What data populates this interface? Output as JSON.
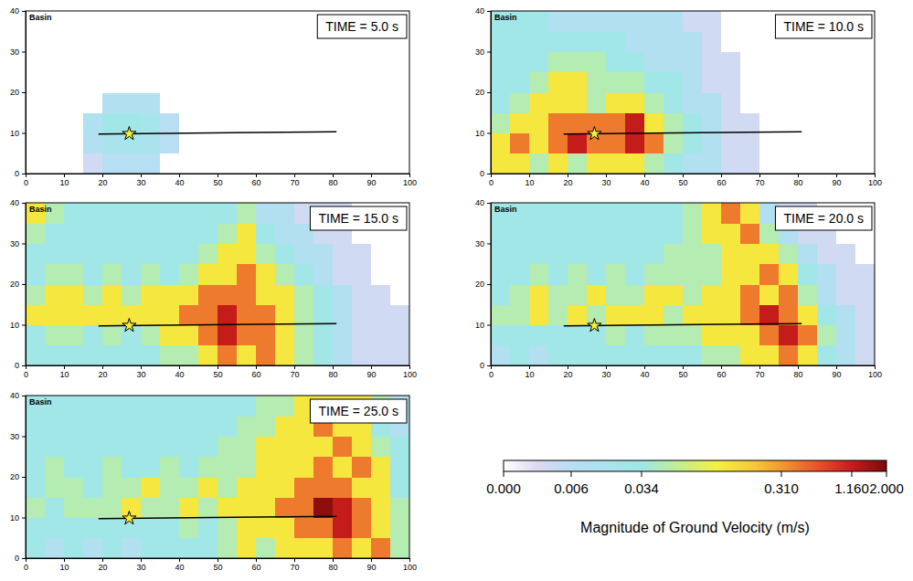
{
  "chart_data": [
    {
      "type": "heatmap",
      "title": "Basin",
      "annotation": "TIME = 5.0 s",
      "x": [
        2.5,
        7.5,
        12.5,
        17.5,
        22.5,
        27.5,
        32.5,
        37.5,
        42.5,
        47.5,
        52.5,
        57.5,
        62.5,
        67.5,
        72.5,
        77.5,
        82.5,
        87.5,
        92.5,
        97.5
      ],
      "y": [
        2.5,
        7.5,
        12.5,
        17.5,
        22.5,
        27.5,
        32.5,
        37.5
      ],
      "z": [
        [
          0,
          0,
          0,
          0.004,
          0.008,
          0.008,
          0.008,
          0,
          0,
          0,
          0,
          0,
          0,
          0,
          0,
          0,
          0,
          0,
          0,
          0
        ],
        [
          0,
          0,
          0,
          0.012,
          0.02,
          0.025,
          0.02,
          0.006,
          0,
          0,
          0,
          0,
          0,
          0,
          0,
          0,
          0,
          0,
          0,
          0
        ],
        [
          0,
          0,
          0,
          0.015,
          0.03,
          0.03,
          0.025,
          0.006,
          0,
          0,
          0,
          0,
          0,
          0,
          0,
          0,
          0,
          0,
          0,
          0
        ],
        [
          0,
          0,
          0,
          0,
          0.012,
          0.012,
          0.012,
          0,
          0,
          0,
          0,
          0,
          0,
          0,
          0,
          0,
          0,
          0,
          0,
          0
        ],
        [
          0,
          0,
          0,
          0,
          0,
          0,
          0,
          0,
          0,
          0,
          0,
          0,
          0,
          0,
          0,
          0,
          0,
          0,
          0,
          0
        ],
        [
          0,
          0,
          0,
          0,
          0,
          0,
          0,
          0,
          0,
          0,
          0,
          0,
          0,
          0,
          0,
          0,
          0,
          0,
          0,
          0
        ],
        [
          0,
          0,
          0,
          0,
          0,
          0,
          0,
          0,
          0,
          0,
          0,
          0,
          0,
          0,
          0,
          0,
          0,
          0,
          0,
          0
        ],
        [
          0,
          0,
          0,
          0,
          0,
          0,
          0,
          0,
          0,
          0,
          0,
          0,
          0,
          0,
          0,
          0,
          0,
          0,
          0,
          0
        ]
      ],
      "xlim": [
        0,
        100
      ],
      "ylim": [
        0,
        40
      ],
      "xticks": [
        0,
        10,
        20,
        30,
        40,
        50,
        60,
        70,
        80,
        90,
        100
      ],
      "yticks": [
        0,
        10,
        20,
        30,
        40
      ],
      "fault": {
        "x": [
          19,
          81
        ],
        "y": [
          9.7,
          10.3
        ]
      },
      "epicenter": {
        "x": 27,
        "y": 9.8
      }
    },
    {
      "type": "heatmap",
      "title": "Basin",
      "annotation": "TIME = 10.0 s",
      "x": [
        2.5,
        7.5,
        12.5,
        17.5,
        22.5,
        27.5,
        32.5,
        37.5,
        42.5,
        47.5,
        52.5,
        57.5,
        62.5,
        67.5,
        72.5,
        77.5,
        82.5,
        87.5,
        92.5,
        97.5
      ],
      "y": [
        2.5,
        7.5,
        12.5,
        17.5,
        22.5,
        27.5,
        32.5,
        37.5
      ],
      "z": [
        [
          0.2,
          0.2,
          0.08,
          0.2,
          0.08,
          0.2,
          0.2,
          0.2,
          0.08,
          0.03,
          0.012,
          0.012,
          0.004,
          0.004,
          0,
          0,
          0,
          0,
          0,
          0
        ],
        [
          0.2,
          0.5,
          0.2,
          0.5,
          1.2,
          0.5,
          0.5,
          1.2,
          0.5,
          0.08,
          0.03,
          0.012,
          0.004,
          0.004,
          0,
          0,
          0,
          0,
          0,
          0
        ],
        [
          0.08,
          0.2,
          0.2,
          0.5,
          0.5,
          0.5,
          0.5,
          1.2,
          0.2,
          0.08,
          0.03,
          0.012,
          0.004,
          0.004,
          0,
          0,
          0,
          0,
          0,
          0
        ],
        [
          0.03,
          0.08,
          0.2,
          0.2,
          0.2,
          0.08,
          0.2,
          0.2,
          0.08,
          0.03,
          0.012,
          0.012,
          0.004,
          0,
          0,
          0,
          0,
          0,
          0,
          0
        ],
        [
          0.03,
          0.03,
          0.08,
          0.2,
          0.2,
          0.08,
          0.08,
          0.08,
          0.03,
          0.03,
          0.012,
          0.004,
          0.004,
          0,
          0,
          0,
          0,
          0,
          0,
          0
        ],
        [
          0.03,
          0.03,
          0.03,
          0.08,
          0.08,
          0.08,
          0.03,
          0.03,
          0.012,
          0.012,
          0.012,
          0.004,
          0.004,
          0,
          0,
          0,
          0,
          0,
          0,
          0
        ],
        [
          0.03,
          0.03,
          0.03,
          0.03,
          0.03,
          0.03,
          0.03,
          0.012,
          0.012,
          0.012,
          0.012,
          0.004,
          0,
          0,
          0,
          0,
          0,
          0,
          0,
          0
        ],
        [
          0.03,
          0.03,
          0.03,
          0.012,
          0.012,
          0.012,
          0.012,
          0.012,
          0.012,
          0.012,
          0.004,
          0.004,
          0,
          0,
          0,
          0,
          0,
          0,
          0,
          0
        ]
      ],
      "xlim": [
        0,
        100
      ],
      "ylim": [
        0,
        40
      ],
      "xticks": [
        0,
        10,
        20,
        30,
        40,
        50,
        60,
        70,
        80,
        90,
        100
      ],
      "yticks": [
        0,
        10,
        20,
        30,
        40
      ],
      "fault": {
        "x": [
          19,
          81
        ],
        "y": [
          9.7,
          10.3
        ]
      },
      "epicenter": {
        "x": 27,
        "y": 9.8
      }
    },
    {
      "type": "heatmap",
      "title": "Basin",
      "annotation": "TIME = 15.0 s",
      "x": [
        2.5,
        7.5,
        12.5,
        17.5,
        22.5,
        27.5,
        32.5,
        37.5,
        42.5,
        47.5,
        52.5,
        57.5,
        62.5,
        67.5,
        72.5,
        77.5,
        82.5,
        87.5,
        92.5,
        97.5
      ],
      "y": [
        2.5,
        7.5,
        12.5,
        17.5,
        22.5,
        27.5,
        32.5,
        37.5
      ],
      "z": [
        [
          0.03,
          0.03,
          0.03,
          0.03,
          0.03,
          0.03,
          0.03,
          0.08,
          0.08,
          0.2,
          0.5,
          0.2,
          0.5,
          0.2,
          0.08,
          0.03,
          0.012,
          0.004,
          0.004,
          0.004
        ],
        [
          0.03,
          0.08,
          0.08,
          0.03,
          0.08,
          0.03,
          0.08,
          0.2,
          0.2,
          0.5,
          1.2,
          0.5,
          0.5,
          0.2,
          0.08,
          0.03,
          0.012,
          0.004,
          0.004,
          0.004
        ],
        [
          0.2,
          0.2,
          0.2,
          0.2,
          0.2,
          0.2,
          0.2,
          0.2,
          0.5,
          0.5,
          1.2,
          0.5,
          0.5,
          0.2,
          0.08,
          0.03,
          0.012,
          0.004,
          0.004,
          0.004
        ],
        [
          0.08,
          0.2,
          0.2,
          0.08,
          0.2,
          0.08,
          0.2,
          0.2,
          0.2,
          0.5,
          0.5,
          0.5,
          0.2,
          0.2,
          0.08,
          0.03,
          0.012,
          0.004,
          0.004,
          0
        ],
        [
          0.03,
          0.08,
          0.08,
          0.03,
          0.08,
          0.03,
          0.08,
          0.03,
          0.08,
          0.2,
          0.2,
          0.5,
          0.2,
          0.08,
          0.03,
          0.012,
          0.004,
          0.004,
          0,
          0
        ],
        [
          0.03,
          0.03,
          0.03,
          0.03,
          0.03,
          0.03,
          0.03,
          0.03,
          0.03,
          0.08,
          0.2,
          0.2,
          0.08,
          0.03,
          0.012,
          0.012,
          0.004,
          0.004,
          0,
          0
        ],
        [
          0.08,
          0.03,
          0.03,
          0.03,
          0.03,
          0.03,
          0.03,
          0.03,
          0.03,
          0.03,
          0.08,
          0.2,
          0.03,
          0.012,
          0.012,
          0.004,
          0.004,
          0,
          0,
          0
        ],
        [
          0.2,
          0.08,
          0.03,
          0.03,
          0.03,
          0.03,
          0.03,
          0.03,
          0.03,
          0.03,
          0.03,
          0.08,
          0.012,
          0.012,
          0.004,
          0.004,
          0.004,
          0,
          0,
          0
        ]
      ],
      "xlim": [
        0,
        100
      ],
      "ylim": [
        0,
        40
      ],
      "xticks": [
        0,
        10,
        20,
        30,
        40,
        50,
        60,
        70,
        80,
        90,
        100
      ],
      "yticks": [
        0,
        10,
        20,
        30,
        40
      ],
      "fault": {
        "x": [
          19,
          81
        ],
        "y": [
          9.7,
          10.3
        ]
      },
      "epicenter": {
        "x": 27,
        "y": 9.8
      }
    },
    {
      "type": "heatmap",
      "title": "Basin",
      "annotation": "TIME = 20.0 s",
      "x": [
        2.5,
        7.5,
        12.5,
        17.5,
        22.5,
        27.5,
        32.5,
        37.5,
        42.5,
        47.5,
        52.5,
        57.5,
        62.5,
        67.5,
        72.5,
        77.5,
        82.5,
        87.5,
        92.5,
        97.5
      ],
      "y": [
        2.5,
        7.5,
        12.5,
        17.5,
        22.5,
        27.5,
        32.5,
        37.5
      ],
      "z": [
        [
          0.012,
          0.03,
          0.012,
          0.03,
          0.03,
          0.03,
          0.03,
          0.03,
          0.03,
          0.03,
          0.03,
          0.08,
          0.08,
          0.2,
          0.2,
          0.5,
          0.2,
          0.03,
          0.012,
          0.004
        ],
        [
          0.03,
          0.03,
          0.03,
          0.03,
          0.03,
          0.03,
          0.08,
          0.03,
          0.08,
          0.08,
          0.08,
          0.2,
          0.2,
          0.2,
          0.5,
          1.2,
          0.5,
          0.08,
          0.012,
          0.004
        ],
        [
          0.08,
          0.08,
          0.2,
          0.08,
          0.2,
          0.08,
          0.2,
          0.2,
          0.2,
          0.08,
          0.2,
          0.2,
          0.2,
          0.5,
          1.2,
          0.5,
          0.2,
          0.03,
          0.012,
          0.004
        ],
        [
          0.03,
          0.08,
          0.2,
          0.08,
          0.08,
          0.2,
          0.08,
          0.08,
          0.2,
          0.2,
          0.08,
          0.2,
          0.2,
          0.5,
          0.2,
          0.5,
          0.08,
          0.012,
          0.004,
          0.004
        ],
        [
          0.03,
          0.03,
          0.08,
          0.03,
          0.08,
          0.03,
          0.08,
          0.03,
          0.08,
          0.08,
          0.08,
          0.08,
          0.2,
          0.2,
          0.5,
          0.2,
          0.03,
          0.012,
          0.004,
          0.004
        ],
        [
          0.03,
          0.03,
          0.03,
          0.03,
          0.03,
          0.03,
          0.03,
          0.03,
          0.03,
          0.08,
          0.08,
          0.08,
          0.2,
          0.2,
          0.2,
          0.08,
          0.012,
          0.004,
          0.004,
          0
        ],
        [
          0.03,
          0.03,
          0.03,
          0.03,
          0.03,
          0.03,
          0.03,
          0.03,
          0.03,
          0.03,
          0.08,
          0.2,
          0.2,
          0.5,
          0.08,
          0.012,
          0.004,
          0.004,
          0,
          0
        ],
        [
          0.03,
          0.03,
          0.03,
          0.03,
          0.03,
          0.03,
          0.03,
          0.03,
          0.03,
          0.03,
          0.08,
          0.2,
          0.5,
          0.2,
          0.012,
          0.004,
          0.004,
          0,
          0,
          0
        ]
      ],
      "xlim": [
        0,
        100
      ],
      "ylim": [
        0,
        40
      ],
      "xticks": [
        0,
        10,
        20,
        30,
        40,
        50,
        60,
        70,
        80,
        90,
        100
      ],
      "yticks": [
        0,
        10,
        20,
        30,
        40
      ],
      "fault": {
        "x": [
          19,
          81
        ],
        "y": [
          9.7,
          10.3
        ]
      },
      "epicenter": {
        "x": 27,
        "y": 9.8
      }
    },
    {
      "type": "heatmap",
      "title": "Basin",
      "annotation": "TIME = 25.0 s",
      "x": [
        2.5,
        7.5,
        12.5,
        17.5,
        22.5,
        27.5,
        32.5,
        37.5,
        42.5,
        47.5,
        52.5,
        57.5,
        62.5,
        67.5,
        72.5,
        77.5,
        82.5,
        87.5,
        92.5,
        97.5
      ],
      "y": [
        2.5,
        7.5,
        12.5,
        17.5,
        22.5,
        27.5,
        32.5,
        37.5
      ],
      "z": [
        [
          0.03,
          0.012,
          0.03,
          0.012,
          0.03,
          0.012,
          0.03,
          0.03,
          0.03,
          0.03,
          0.08,
          0.2,
          0.08,
          0.2,
          0.2,
          0.2,
          0.5,
          0.2,
          0.5,
          0.08
        ],
        [
          0.03,
          0.03,
          0.03,
          0.03,
          0.03,
          0.03,
          0.03,
          0.03,
          0.08,
          0.03,
          0.08,
          0.2,
          0.2,
          0.2,
          0.5,
          0.5,
          1.2,
          0.5,
          0.2,
          0.08
        ],
        [
          0.08,
          0.03,
          0.08,
          0.08,
          0.08,
          0.2,
          0.08,
          0.08,
          0.2,
          0.08,
          0.2,
          0.2,
          0.2,
          0.5,
          0.5,
          1.8,
          1.2,
          0.5,
          0.2,
          0.08
        ],
        [
          0.03,
          0.08,
          0.08,
          0.03,
          0.08,
          0.08,
          0.2,
          0.08,
          0.08,
          0.2,
          0.08,
          0.2,
          0.2,
          0.2,
          0.5,
          0.5,
          0.5,
          0.2,
          0.2,
          0.03
        ],
        [
          0.03,
          0.08,
          0.03,
          0.03,
          0.08,
          0.03,
          0.03,
          0.08,
          0.03,
          0.08,
          0.08,
          0.08,
          0.2,
          0.2,
          0.2,
          0.5,
          0.2,
          0.5,
          0.2,
          0.03
        ],
        [
          0.03,
          0.03,
          0.03,
          0.03,
          0.03,
          0.03,
          0.03,
          0.03,
          0.03,
          0.03,
          0.08,
          0.08,
          0.2,
          0.2,
          0.2,
          0.2,
          0.5,
          0.2,
          0.08,
          0.03
        ],
        [
          0.03,
          0.03,
          0.03,
          0.03,
          0.03,
          0.03,
          0.03,
          0.03,
          0.03,
          0.03,
          0.03,
          0.08,
          0.08,
          0.2,
          0.2,
          0.5,
          0.2,
          0.2,
          0.03,
          0.012
        ],
        [
          0.03,
          0.03,
          0.03,
          0.03,
          0.03,
          0.03,
          0.03,
          0.03,
          0.03,
          0.03,
          0.03,
          0.03,
          0.08,
          0.08,
          0.2,
          0.2,
          0.2,
          0.2,
          0.08,
          0.012
        ]
      ],
      "xlim": [
        0,
        100
      ],
      "ylim": [
        0,
        40
      ],
      "xticks": [
        0,
        10,
        20,
        30,
        40,
        50,
        60,
        70,
        80,
        90,
        100
      ],
      "yticks": [
        0,
        10,
        20,
        30,
        40
      ],
      "fault": {
        "x": [
          19,
          81
        ],
        "y": [
          9.7,
          10.3
        ]
      },
      "epicenter": {
        "x": 27,
        "y": 9.8
      }
    }
  ],
  "colorbar": {
    "title": "Magnitude of Ground Velocity (m/s)",
    "range": [
      0,
      2
    ],
    "ticks": [
      {
        "value": 0,
        "label": "0.000"
      },
      {
        "value": 0.006,
        "label": "0.006"
      },
      {
        "value": 0.034,
        "label": "0.034"
      },
      {
        "value": 0.31,
        "label": "0.310"
      },
      {
        "value": 1.16,
        "label": "1.160"
      },
      {
        "value": 2,
        "label": "2.000"
      }
    ]
  }
}
